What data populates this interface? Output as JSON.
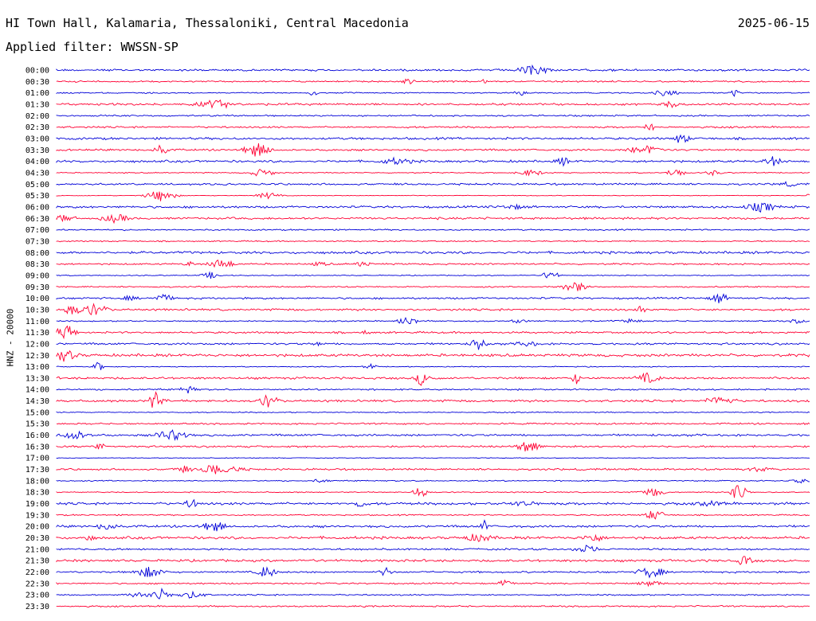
{
  "header": {
    "title": "HI Town Hall, Kalamaria, Thessaloniki, Central Macedonia",
    "date": "2025-06-15",
    "filter": "Applied filter: WWSSN-SP"
  },
  "chart_data": {
    "type": "line",
    "ylabel": "HNZ - 20000",
    "trace_colors": [
      "#0000d8",
      "#ff0033"
    ],
    "rows": [
      "00:00",
      "00:30",
      "01:00",
      "01:30",
      "02:00",
      "02:30",
      "03:00",
      "03:30",
      "04:00",
      "04:30",
      "05:00",
      "05:30",
      "06:00",
      "06:30",
      "07:00",
      "07:30",
      "08:00",
      "08:30",
      "09:00",
      "09:30",
      "10:00",
      "10:30",
      "11:00",
      "11:30",
      "12:00",
      "12:30",
      "13:00",
      "13:30",
      "14:00",
      "14:30",
      "15:00",
      "15:30",
      "16:00",
      "16:30",
      "17:00",
      "17:30",
      "18:00",
      "18:30",
      "19:00",
      "19:30",
      "20:00",
      "20:30",
      "21:00",
      "21:30",
      "22:00",
      "22:30",
      "23:00",
      "23:30"
    ],
    "grid": false
  }
}
